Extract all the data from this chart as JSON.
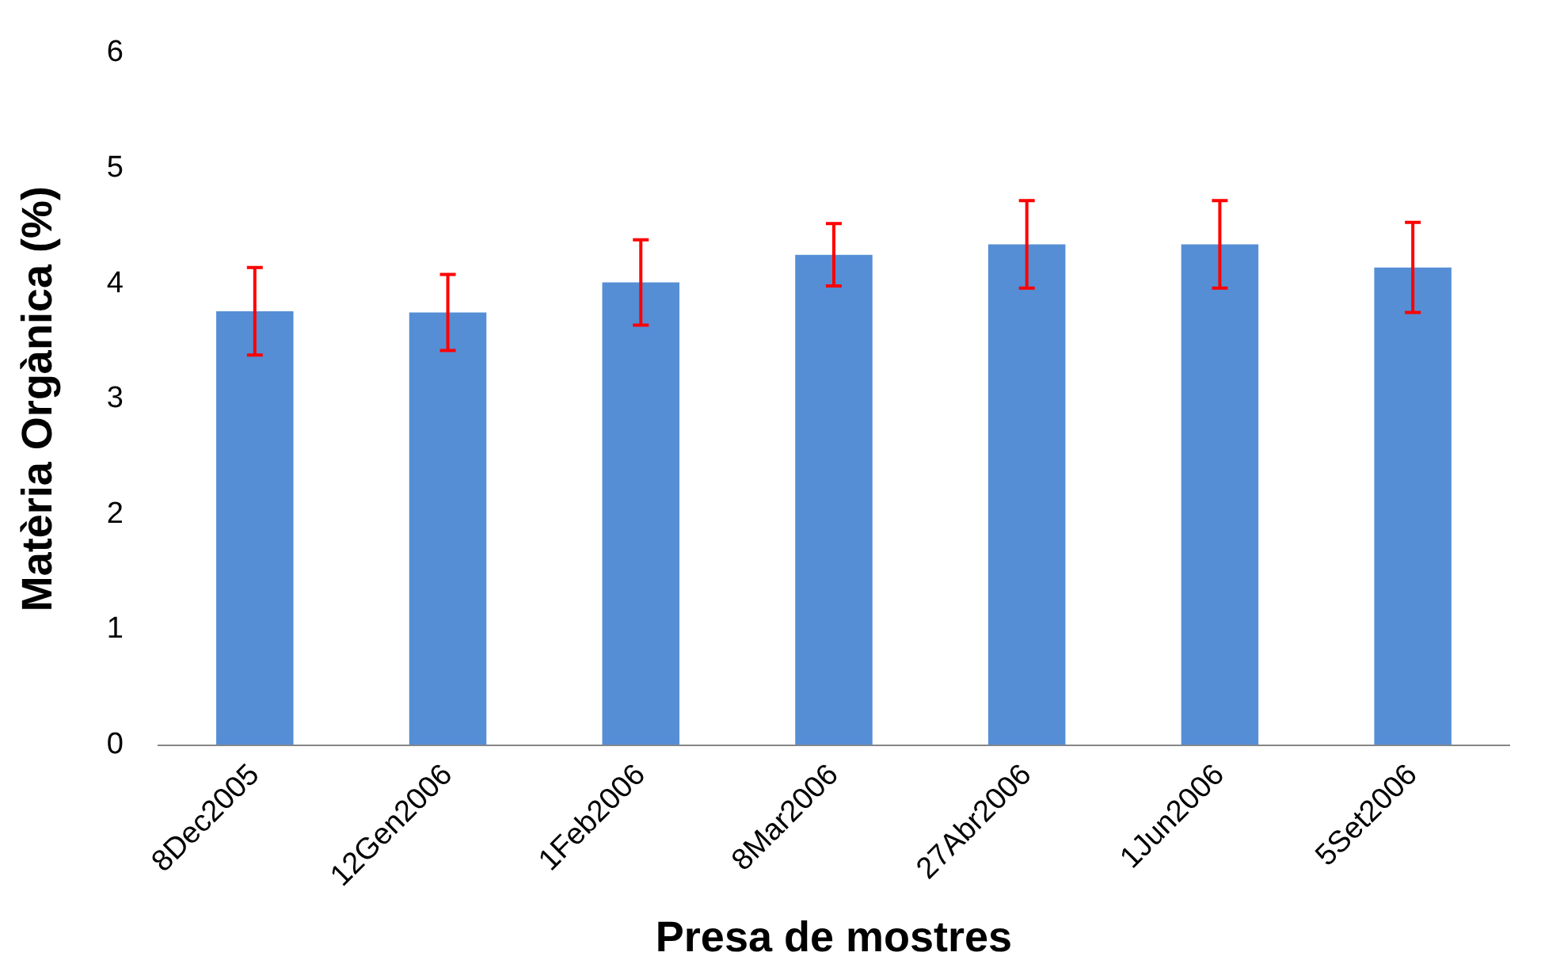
{
  "chart_data": {
    "type": "bar",
    "xlabel": "Presa de mostres",
    "ylabel": "Matèria Orgànica (%)",
    "categories": [
      "8Dec2005",
      "12Gen2006",
      "1Feb2006",
      "8Mar2006",
      "27Abr2006",
      "1Jun2006",
      "5Set2006"
    ],
    "values": [
      3.76,
      3.75,
      4.01,
      4.25,
      4.34,
      4.34,
      4.14
    ],
    "errors": [
      0.38,
      0.33,
      0.37,
      0.27,
      0.38,
      0.38,
      0.39
    ],
    "color": "#558ed5",
    "ylim": [
      0,
      6
    ],
    "yticks": [
      0,
      1,
      2,
      3,
      4,
      5,
      6
    ],
    "grid": false,
    "legend": false
  }
}
